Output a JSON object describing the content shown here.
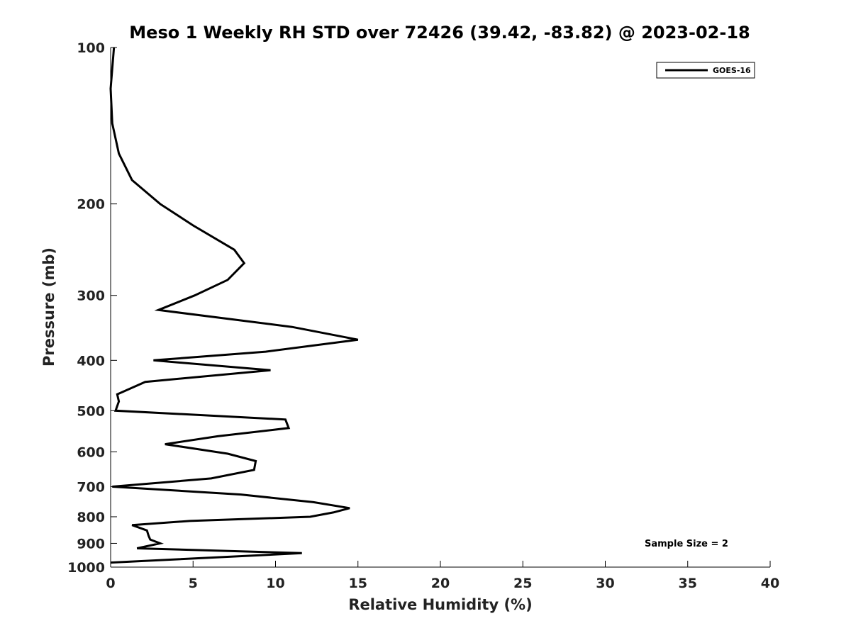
{
  "chart_data": {
    "type": "line",
    "title": "Meso 1 Weekly RH STD over 72426 (39.42, -83.82) @ 2023-02-18",
    "xlabel": "Relative Humidity (%)",
    "ylabel": "Pressure (mb)",
    "xlim": [
      0,
      40
    ],
    "ylim": [
      100,
      1000
    ],
    "yscale": "log",
    "y_reversed": true,
    "xticks": [
      0,
      5,
      10,
      15,
      20,
      25,
      30,
      35,
      40
    ],
    "yticks": [
      100,
      200,
      300,
      400,
      500,
      600,
      700,
      800,
      900,
      1000
    ],
    "grid": false,
    "legend_position": "top-right",
    "series": [
      {
        "name": "GOES-16",
        "color": "#000000",
        "x": [
          0.2,
          0.0,
          0.1,
          0.5,
          1.3,
          3.0,
          5.0,
          7.5,
          8.1,
          7.1,
          5.1,
          2.9,
          11.0,
          15.0,
          9.4,
          2.6,
          9.7,
          2.1,
          0.4,
          0.5,
          0.3,
          10.6,
          10.8,
          6.5,
          3.3,
          7.1,
          8.8,
          8.7,
          6.1,
          0.1,
          7.9,
          12.3,
          14.5,
          13.5,
          12.1,
          4.8,
          1.3,
          2.2,
          2.3,
          2.4,
          3.0,
          1.6,
          11.6,
          0.0
        ],
        "y": [
          100,
          120,
          140,
          160,
          180,
          200,
          220,
          245,
          260,
          280,
          300,
          320,
          345,
          365,
          385,
          400,
          418,
          440,
          465,
          480,
          500,
          520,
          540,
          560,
          580,
          605,
          625,
          650,
          675,
          700,
          725,
          750,
          770,
          785,
          800,
          815,
          830,
          850,
          870,
          885,
          900,
          920,
          940,
          980
        ]
      }
    ],
    "annotations": [
      "Sample Size = 2"
    ]
  }
}
